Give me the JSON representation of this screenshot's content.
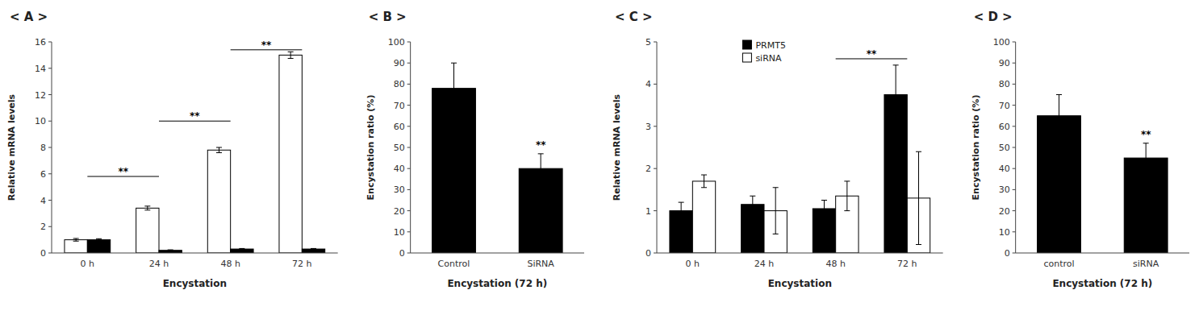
{
  "chart_data": [
    {
      "type": "bar",
      "title": "< A >",
      "categories": [
        "0 h",
        "24 h",
        "48 h",
        "72 h"
      ],
      "series": [
        {
          "color": "white",
          "values": [
            1.0,
            3.4,
            7.8,
            15.0
          ],
          "errors": [
            0.1,
            0.15,
            0.2,
            0.25
          ]
        },
        {
          "color": "black",
          "values": [
            1.0,
            0.2,
            0.3,
            0.3
          ],
          "errors": [
            0.08,
            0.04,
            0.04,
            0.04
          ]
        }
      ],
      "xlabel": "Encystation",
      "ylabel": "Relative mRNA levels",
      "ylim": [
        0,
        16
      ],
      "yticks": [
        0,
        2,
        4,
        6,
        8,
        10,
        12,
        14,
        16
      ],
      "grid": false,
      "annotations": [
        {
          "text": "**",
          "x": [
            "0 h",
            "24 h"
          ],
          "y": 5.8
        },
        {
          "text": "**",
          "x": [
            "24 h",
            "48 h"
          ],
          "y": 10.0
        },
        {
          "text": "**",
          "x": [
            "48 h",
            "72 h"
          ],
          "y": 15.4
        }
      ]
    },
    {
      "type": "bar",
      "title": "< B >",
      "categories": [
        "Control",
        "SiRNA"
      ],
      "values": [
        78.0,
        40.0
      ],
      "errors": [
        12.0,
        7.0
      ],
      "color": "black",
      "xlabel": "Encystation (72 h)",
      "ylabel": "Encystation ratio (%)",
      "ylim": [
        0,
        100
      ],
      "yticks": [
        0,
        10,
        20,
        30,
        40,
        50,
        60,
        70,
        80,
        90,
        100
      ],
      "grid": false,
      "annotations": [
        {
          "text": "**",
          "x": "SiRNA",
          "y": 49
        }
      ]
    },
    {
      "type": "bar",
      "title": "< C >",
      "categories": [
        "0 h",
        "24 h",
        "48 h",
        "72 h"
      ],
      "series": [
        {
          "name": "PRMT5",
          "color": "black",
          "values": [
            1.0,
            1.15,
            1.05,
            3.75
          ],
          "errors": [
            0.2,
            0.2,
            0.2,
            0.7
          ]
        },
        {
          "name": "siRNA",
          "color": "white",
          "values": [
            1.7,
            1.0,
            1.35,
            1.3
          ],
          "errors": [
            0.15,
            0.55,
            0.35,
            1.1
          ]
        }
      ],
      "xlabel": "Encystation",
      "ylabel": "Relative mRNA levels",
      "ylim": [
        0,
        5
      ],
      "yticks": [
        0,
        1,
        2,
        3,
        4,
        5
      ],
      "grid": false,
      "legend": "top",
      "annotations": [
        {
          "text": "**",
          "x": [
            "48 h",
            "72 h"
          ],
          "y": 4.6
        }
      ]
    },
    {
      "type": "bar",
      "title": "< D >",
      "categories": [
        "control",
        "siRNA"
      ],
      "values": [
        65.0,
        45.0
      ],
      "errors": [
        10.0,
        7.0
      ],
      "color": "black",
      "xlabel": "Encystation (72 h)",
      "ylabel": "Encystation ratio (%)",
      "ylim": [
        0,
        100
      ],
      "yticks": [
        0,
        10,
        20,
        30,
        40,
        50,
        60,
        70,
        80,
        90,
        100
      ],
      "grid": false,
      "annotations": [
        {
          "text": "**",
          "x": "siRNA",
          "y": 54
        }
      ]
    }
  ]
}
